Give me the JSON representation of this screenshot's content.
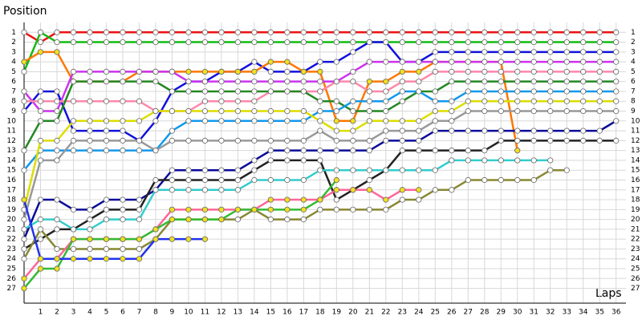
{
  "chart_data": {
    "type": "line",
    "y_label": "Position",
    "x_label": "Laps",
    "x": [
      0,
      1,
      2,
      3,
      4,
      5,
      6,
      7,
      8,
      9,
      10,
      11,
      12,
      13,
      14,
      15,
      16,
      17,
      18,
      19,
      20,
      21,
      22,
      23,
      24,
      25,
      26,
      27,
      28,
      29,
      30,
      31,
      32,
      33,
      34,
      35,
      36
    ],
    "xlim": [
      0,
      36.6
    ],
    "ylim": [
      0,
      28.5
    ],
    "y_inverted": true,
    "grid": true,
    "xticks": [
      1,
      2,
      3,
      4,
      5,
      6,
      7,
      8,
      9,
      10,
      11,
      12,
      13,
      14,
      15,
      16,
      17,
      18,
      19,
      20,
      21,
      22,
      23,
      24,
      25,
      26,
      27,
      28,
      29,
      30,
      31,
      32,
      33,
      34,
      35,
      36
    ],
    "yticks": [
      1,
      2,
      3,
      4,
      5,
      6,
      7,
      8,
      9,
      10,
      11,
      12,
      13,
      14,
      15,
      16,
      17,
      18,
      19,
      20,
      21,
      22,
      23,
      24,
      25,
      26,
      27
    ],
    "series": [
      {
        "color": "#ee1111",
        "marker_fill": "#ffffff",
        "values": [
          1,
          2,
          1,
          1,
          1,
          1,
          1,
          1,
          1,
          1,
          1,
          1,
          1,
          1,
          1,
          1,
          1,
          1,
          1,
          1,
          1,
          1,
          1,
          1,
          1,
          1,
          1,
          1,
          1,
          1,
          1,
          1,
          1,
          1,
          1,
          1,
          1
        ]
      },
      {
        "color": "#11bb11",
        "marker_fill": "#ffffff",
        "values": [
          5,
          1,
          2,
          2,
          2,
          2,
          2,
          2,
          2,
          2,
          2,
          2,
          2,
          2,
          2,
          2,
          2,
          2,
          2,
          2,
          2,
          2,
          2,
          2,
          2,
          2,
          2,
          2,
          2,
          2,
          2,
          2,
          2,
          2,
          2,
          2,
          2
        ]
      },
      {
        "color": "#1111dd",
        "marker_fill": "#ffffff",
        "values": [
          9,
          7,
          7,
          11,
          11,
          11,
          11,
          12,
          10,
          7,
          6,
          6,
          5,
          5,
          4,
          5,
          5,
          5,
          4,
          4,
          3,
          2,
          2,
          4,
          4,
          3,
          3,
          3,
          3,
          3,
          3,
          3,
          3,
          3,
          3,
          3,
          3
        ]
      },
      {
        "color": "#ff7700",
        "marker_fill": "#f0e020",
        "values": [
          4,
          3,
          3,
          6,
          6,
          6,
          6,
          5,
          5,
          5,
          5,
          5,
          5,
          5,
          5,
          4,
          4,
          5,
          5,
          10,
          10,
          6,
          6,
          5,
          5,
          4,
          4,
          4,
          4,
          4,
          13,
          null,
          null,
          null,
          null,
          null,
          null
        ]
      },
      {
        "color": "#cc33ee",
        "marker_fill": "#ffffff",
        "values": [
          7,
          9,
          9,
          5,
          5,
          5,
          5,
          5,
          5,
          5,
          6,
          6,
          6,
          6,
          6,
          6,
          6,
          6,
          6,
          6,
          5,
          4,
          4,
          4,
          4,
          4,
          4,
          4,
          4,
          4,
          4,
          4,
          4,
          4,
          4,
          4,
          4
        ]
      },
      {
        "color": "#ff88aa",
        "marker_fill": "#ffffff",
        "values": [
          8,
          8,
          8,
          8,
          8,
          8,
          8,
          8,
          9,
          9,
          9,
          8,
          8,
          8,
          8,
          7,
          7,
          7,
          7,
          6,
          6,
          7,
          7,
          6,
          6,
          5,
          5,
          5,
          5,
          5,
          5,
          5,
          5,
          5,
          5,
          5,
          5
        ]
      },
      {
        "color": "#228822",
        "marker_fill": "#ffffff",
        "values": [
          13,
          10,
          10,
          6,
          6,
          6,
          6,
          6,
          6,
          7,
          7,
          7,
          7,
          7,
          7,
          7,
          7,
          7,
          8,
          8,
          9,
          9,
          9,
          8,
          7,
          7,
          6,
          6,
          6,
          6,
          6,
          6,
          6,
          6,
          6,
          6,
          6
        ]
      },
      {
        "color": "#1199ee",
        "marker_fill": "#ffffff",
        "values": [
          15,
          13,
          13,
          13,
          13,
          13,
          13,
          13,
          13,
          11,
          10,
          10,
          10,
          10,
          10,
          10,
          10,
          10,
          9,
          9,
          8,
          8,
          8,
          7,
          7,
          8,
          8,
          7,
          7,
          7,
          7,
          7,
          7,
          7,
          7,
          7,
          7
        ]
      },
      {
        "color": "#dddd00",
        "marker_fill": "#ffffff",
        "values": [
          19,
          12,
          12,
          10,
          10,
          10,
          10,
          10,
          9,
          9,
          9,
          9,
          9,
          9,
          9,
          9,
          9,
          9,
          10,
          11,
          11,
          10,
          10,
          10,
          10,
          9,
          9,
          8,
          8,
          8,
          8,
          8,
          8,
          8,
          8,
          8,
          8
        ]
      },
      {
        "color": "#999999",
        "marker_fill": "#ffffff",
        "values": [
          20,
          14,
          14,
          12,
          12,
          12,
          12,
          12,
          13,
          12,
          12,
          12,
          12,
          12,
          12,
          12,
          12,
          12,
          11,
          12,
          12,
          12,
          11,
          11,
          11,
          10,
          10,
          9,
          9,
          9,
          9,
          9,
          9,
          9,
          9,
          9,
          9
        ]
      },
      {
        "color": "#0a0a99",
        "marker_fill": "#ffffff",
        "values": [
          22,
          18,
          18,
          19,
          19,
          18,
          18,
          18,
          17,
          15,
          15,
          15,
          15,
          15,
          14,
          13,
          13,
          13,
          13,
          13,
          13,
          13,
          12,
          12,
          12,
          11,
          11,
          11,
          11,
          11,
          11,
          11,
          11,
          11,
          11,
          11,
          10
        ]
      },
      {
        "color": "#222222",
        "marker_fill": "#ffffff",
        "values": [
          23,
          22,
          21,
          21,
          20,
          19,
          19,
          19,
          16,
          16,
          16,
          16,
          16,
          16,
          15,
          14,
          14,
          14,
          14,
          18,
          17,
          16,
          15,
          13,
          13,
          13,
          13,
          13,
          13,
          12,
          12,
          12,
          12,
          12,
          12,
          12,
          12
        ]
      },
      {
        "color": "#33cccc",
        "marker_fill": "#ffffff",
        "values": [
          21,
          20,
          20,
          21,
          21,
          20,
          20,
          20,
          17,
          17,
          17,
          17,
          17,
          17,
          16,
          16,
          16,
          16,
          15,
          15,
          15,
          15,
          15,
          15,
          15,
          15,
          14,
          14,
          14,
          14,
          14,
          14,
          14,
          null,
          null,
          null,
          null
        ]
      },
      {
        "color": "#888833",
        "marker_fill": "#ffffff",
        "values": [
          24,
          21,
          23,
          23,
          23,
          23,
          23,
          23,
          22,
          20,
          20,
          20,
          20,
          20,
          19,
          20,
          20,
          20,
          19,
          19,
          19,
          19,
          19,
          18,
          18,
          17,
          17,
          16,
          16,
          16,
          16,
          16,
          15,
          15,
          null,
          null,
          null
        ]
      },
      {
        "color": "#ff6699",
        "marker_fill": "#f0e020",
        "values": [
          26,
          24,
          24,
          22,
          22,
          22,
          22,
          22,
          21,
          19,
          19,
          19,
          19,
          19,
          19,
          18,
          18,
          18,
          18,
          17,
          17,
          17,
          18,
          17,
          17,
          null,
          null,
          null,
          null,
          null,
          null,
          null,
          null,
          null,
          null,
          null,
          null
        ]
      },
      {
        "color": "#33bb33",
        "marker_fill": "#f0e020",
        "values": [
          27,
          25,
          25,
          22,
          22,
          22,
          22,
          22,
          21,
          20,
          20,
          20,
          20,
          19,
          19,
          19,
          19,
          19,
          18,
          16,
          null,
          null,
          null,
          null,
          null,
          null,
          null,
          null,
          null,
          null,
          null,
          null,
          null,
          null,
          null,
          null,
          null
        ]
      },
      {
        "color": "#2233ee",
        "marker_fill": "#f0e020",
        "values": [
          18,
          24,
          24,
          24,
          24,
          24,
          24,
          24,
          22,
          22,
          22,
          22,
          null,
          null,
          null,
          null,
          null,
          null,
          null,
          null,
          null,
          null,
          null,
          null,
          null,
          null,
          null,
          null,
          null,
          null,
          null,
          null,
          null,
          null,
          null,
          null,
          null
        ]
      }
    ]
  }
}
